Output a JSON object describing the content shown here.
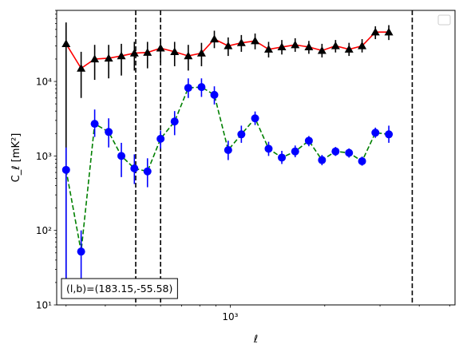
{
  "chart_data": {
    "type": "scatter",
    "title": "",
    "xlabel": "ℓ",
    "ylabel": "C_ℓ  [mK²]",
    "xscale": "log",
    "yscale": "log",
    "xlim": [
      280,
      5200
    ],
    "ylim": [
      10,
      90000
    ],
    "grid": false,
    "legend": "top-right (empty)",
    "annotation": "(l,b)=(183.15,-55.58)",
    "x_ticks": [
      {
        "value": 1000,
        "label": "10³"
      }
    ],
    "y_ticks": [
      {
        "value": 10,
        "label": "10¹"
      },
      {
        "value": 100,
        "label": "10²"
      },
      {
        "value": 1000,
        "label": "10³"
      },
      {
        "value": 10000,
        "label": "10⁴"
      }
    ],
    "vlines": [
      500,
      600,
      3800
    ],
    "series": [
      {
        "line_color": "#ff0000",
        "marker": "triangle",
        "marker_color": "#000000",
        "error_color": "#000000",
        "line_style": "solid",
        "points": [
          {
            "x": 300,
            "y": 32000,
            "lo": 20,
            "hi": 62000
          },
          {
            "x": 335,
            "y": 15000,
            "lo": 6000,
            "hi": 25000
          },
          {
            "x": 370,
            "y": 20000,
            "lo": 10500,
            "hi": 31000
          },
          {
            "x": 410,
            "y": 20500,
            "lo": 11000,
            "hi": 31000
          },
          {
            "x": 450,
            "y": 22000,
            "lo": 12000,
            "hi": 32000
          },
          {
            "x": 495,
            "y": 24000,
            "lo": 14000,
            "hi": 34000
          },
          {
            "x": 545,
            "y": 24500,
            "lo": 15000,
            "hi": 34000
          },
          {
            "x": 600,
            "y": 28000,
            "lo": 18000,
            "hi": 38000
          },
          {
            "x": 665,
            "y": 25000,
            "lo": 16000,
            "hi": 34000
          },
          {
            "x": 735,
            "y": 22000,
            "lo": 14000,
            "hi": 31000
          },
          {
            "x": 810,
            "y": 24000,
            "lo": 16000,
            "hi": 33000
          },
          {
            "x": 890,
            "y": 37000,
            "lo": 28000,
            "hi": 48000
          },
          {
            "x": 985,
            "y": 30000,
            "lo": 22000,
            "hi": 39000
          },
          {
            "x": 1085,
            "y": 33000,
            "lo": 25000,
            "hi": 42000
          },
          {
            "x": 1200,
            "y": 35000,
            "lo": 27000,
            "hi": 44000
          },
          {
            "x": 1325,
            "y": 27000,
            "lo": 21000,
            "hi": 34000
          },
          {
            "x": 1460,
            "y": 29000,
            "lo": 23000,
            "hi": 36000
          },
          {
            "x": 1610,
            "y": 31000,
            "lo": 25000,
            "hi": 38000
          },
          {
            "x": 1780,
            "y": 29000,
            "lo": 23500,
            "hi": 35000
          },
          {
            "x": 1960,
            "y": 26000,
            "lo": 21000,
            "hi": 32000
          },
          {
            "x": 2165,
            "y": 30000,
            "lo": 24500,
            "hi": 36000
          },
          {
            "x": 2390,
            "y": 27000,
            "lo": 22000,
            "hi": 33000
          },
          {
            "x": 2630,
            "y": 30000,
            "lo": 24500,
            "hi": 37000
          },
          {
            "x": 2900,
            "y": 46000,
            "lo": 37000,
            "hi": 55000
          },
          {
            "x": 3200,
            "y": 46000,
            "lo": 36000,
            "hi": 57000
          }
        ]
      },
      {
        "line_color": "#008000",
        "marker": "circle",
        "marker_color": "#0000ff",
        "error_color": "#0000ff",
        "line_style": "dashed",
        "points": [
          {
            "x": 300,
            "y": 650,
            "lo": 20,
            "hi": 1300
          },
          {
            "x": 335,
            "y": 52,
            "lo": 20,
            "hi": 100
          },
          {
            "x": 370,
            "y": 2700,
            "lo": 1800,
            "hi": 4200
          },
          {
            "x": 410,
            "y": 2100,
            "lo": 1300,
            "hi": 3200
          },
          {
            "x": 450,
            "y": 1000,
            "lo": 520,
            "hi": 1500
          },
          {
            "x": 495,
            "y": 680,
            "lo": 420,
            "hi": 1050
          },
          {
            "x": 545,
            "y": 620,
            "lo": 380,
            "hi": 930
          },
          {
            "x": 600,
            "y": 1700,
            "lo": 1250,
            "hi": 2200
          },
          {
            "x": 665,
            "y": 2900,
            "lo": 1900,
            "hi": 4000
          },
          {
            "x": 735,
            "y": 8200,
            "lo": 6000,
            "hi": 11000
          },
          {
            "x": 810,
            "y": 8400,
            "lo": 6200,
            "hi": 11000
          },
          {
            "x": 890,
            "y": 6600,
            "lo": 4900,
            "hi": 8600
          },
          {
            "x": 985,
            "y": 1200,
            "lo": 880,
            "hi": 1600
          },
          {
            "x": 1085,
            "y": 1950,
            "lo": 1500,
            "hi": 2550
          },
          {
            "x": 1200,
            "y": 3200,
            "lo": 2600,
            "hi": 3950
          },
          {
            "x": 1325,
            "y": 1250,
            "lo": 1000,
            "hi": 1550
          },
          {
            "x": 1460,
            "y": 950,
            "lo": 780,
            "hi": 1170
          },
          {
            "x": 1610,
            "y": 1150,
            "lo": 960,
            "hi": 1380
          },
          {
            "x": 1780,
            "y": 1600,
            "lo": 1350,
            "hi": 1850
          },
          {
            "x": 1960,
            "y": 880,
            "lo": 750,
            "hi": 1030
          },
          {
            "x": 2165,
            "y": 1150,
            "lo": 1000,
            "hi": 1320
          },
          {
            "x": 2390,
            "y": 1100,
            "lo": 950,
            "hi": 1260
          },
          {
            "x": 2630,
            "y": 850,
            "lo": 740,
            "hi": 980
          },
          {
            "x": 2900,
            "y": 2050,
            "lo": 1750,
            "hi": 2400
          },
          {
            "x": 3200,
            "y": 1950,
            "lo": 1500,
            "hi": 2550
          }
        ]
      }
    ]
  }
}
